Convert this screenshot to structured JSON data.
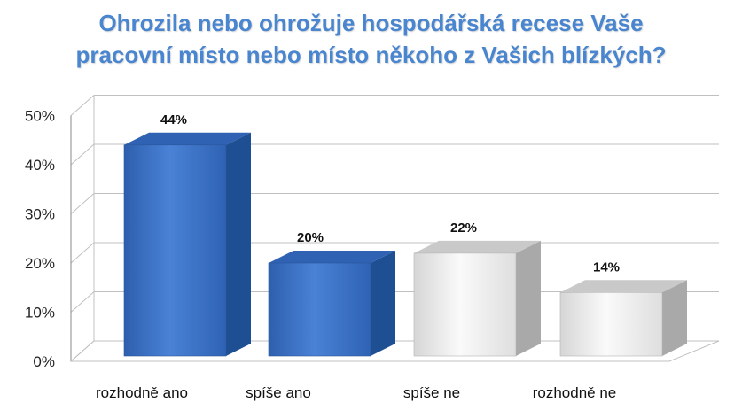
{
  "chart_data": {
    "type": "bar",
    "title_lines": [
      "Ohrozila nebo ohrožuje hospodářská recese Vaše",
      "pracovní místo nebo místo někoho z Vašich blízkých?"
    ],
    "categories": [
      "rozhodně ano",
      "spíše ano",
      "spíše ne",
      "rozhodně ne"
    ],
    "values": [
      44,
      20,
      22,
      14
    ],
    "value_labels": [
      "44%",
      "20%",
      "22%",
      "14%"
    ],
    "bar_styles": [
      "blue",
      "blue",
      "gray",
      "gray"
    ],
    "ylim": [
      0,
      50
    ],
    "yticks": [
      0,
      10,
      20,
      30,
      40,
      50
    ],
    "ytick_labels": [
      "0%",
      "10%",
      "20%",
      "30%",
      "40%",
      "50%"
    ],
    "grid": true,
    "style": "3d-column"
  },
  "colors": {
    "title": "#4a86cf",
    "blue_front": "#3a6fc4",
    "blue_side": "#1f4f93",
    "blue_top": "#2f62b3",
    "gray_front": "#efefef",
    "gray_side": "#a9a9a9",
    "gray_top": "#c9c9c9",
    "grid": "#c0c0c0"
  }
}
